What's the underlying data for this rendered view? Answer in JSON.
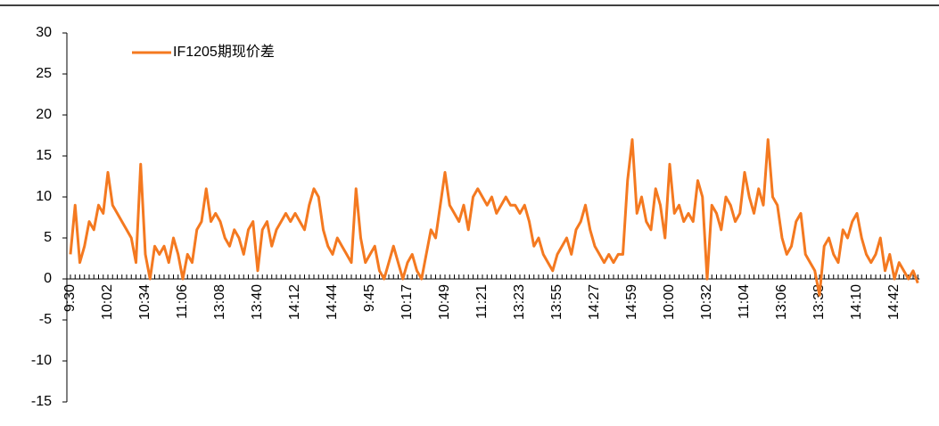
{
  "chart_data": {
    "type": "line",
    "legend": "top-left",
    "categories": [
      "9:30",
      null,
      null,
      null,
      null,
      null,
      null,
      null,
      "10:02",
      null,
      null,
      null,
      null,
      null,
      null,
      null,
      "10:34",
      null,
      null,
      null,
      null,
      null,
      null,
      null,
      "11:06",
      null,
      null,
      null,
      null,
      null,
      null,
      null,
      "13:08",
      null,
      null,
      null,
      null,
      null,
      null,
      null,
      "13:40",
      null,
      null,
      null,
      null,
      null,
      null,
      null,
      "14:12",
      null,
      null,
      null,
      null,
      null,
      null,
      null,
      "14:44",
      null,
      null,
      null,
      null,
      null,
      null,
      null,
      "9:45",
      null,
      null,
      null,
      null,
      null,
      null,
      null,
      "10:17",
      null,
      null,
      null,
      null,
      null,
      null,
      null,
      "10:49",
      null,
      null,
      null,
      null,
      null,
      null,
      null,
      "11:21",
      null,
      null,
      null,
      null,
      null,
      null,
      null,
      "13:23",
      null,
      null,
      null,
      null,
      null,
      null,
      null,
      "13:55",
      null,
      null,
      null,
      null,
      null,
      null,
      null,
      "14:27",
      null,
      null,
      null,
      null,
      null,
      null,
      null,
      "14:59",
      null,
      null,
      null,
      null,
      null,
      null,
      null,
      "10:00",
      null,
      null,
      null,
      null,
      null,
      null,
      null,
      "10:32",
      null,
      null,
      null,
      null,
      null,
      null,
      null,
      "11:04",
      null,
      null,
      null,
      null,
      null,
      null,
      null,
      "13:06",
      null,
      null,
      null,
      null,
      null,
      null,
      null,
      "13:38",
      null,
      null,
      null,
      null,
      null,
      null,
      null,
      "14:10",
      null,
      null,
      null,
      null,
      null,
      null,
      null,
      "14:42",
      null,
      null,
      null,
      null,
      null
    ],
    "series": [
      {
        "name": "IF1205期现价差",
        "color": "#f47920",
        "values": [
          3,
          9,
          2,
          4,
          7,
          6,
          9,
          8,
          13,
          9,
          8,
          7,
          6,
          5,
          2,
          14,
          3,
          0,
          4,
          3,
          4,
          2,
          5,
          3,
          0,
          3,
          2,
          6,
          7,
          11,
          7,
          8,
          7,
          5,
          4,
          6,
          5,
          3,
          6,
          7,
          1,
          6,
          7,
          4,
          6,
          7,
          8,
          7,
          8,
          7,
          6,
          9,
          11,
          10,
          6,
          4,
          3,
          5,
          4,
          3,
          2,
          11,
          5,
          2,
          3,
          4,
          1,
          0,
          2,
          4,
          2,
          0,
          2,
          3,
          1,
          0,
          3,
          6,
          5,
          9,
          13,
          9,
          8,
          7,
          9,
          6,
          10,
          11,
          10,
          9,
          10,
          8,
          9,
          10,
          9,
          9,
          8,
          9,
          7,
          4,
          5,
          3,
          2,
          1,
          3,
          4,
          5,
          3,
          6,
          7,
          9,
          6,
          4,
          3,
          2,
          3,
          2,
          3,
          3,
          12,
          17,
          8,
          10,
          7,
          6,
          11,
          9,
          5,
          14,
          8,
          9,
          7,
          8,
          7,
          12,
          10,
          0,
          9,
          8,
          6,
          10,
          9,
          7,
          8,
          13,
          10,
          8,
          11,
          9,
          17,
          10,
          9,
          5,
          3,
          4,
          7,
          8,
          3,
          2,
          1,
          -2,
          4,
          5,
          3,
          2,
          6,
          5,
          7,
          8,
          5,
          3,
          2,
          3,
          5,
          1,
          3,
          0,
          2,
          1,
          0,
          1,
          -0.5
        ]
      }
    ],
    "ylim": [
      -15,
      30
    ],
    "yticks": [
      -15,
      -10,
      -5,
      0,
      5,
      10,
      15,
      20,
      25,
      30
    ]
  }
}
